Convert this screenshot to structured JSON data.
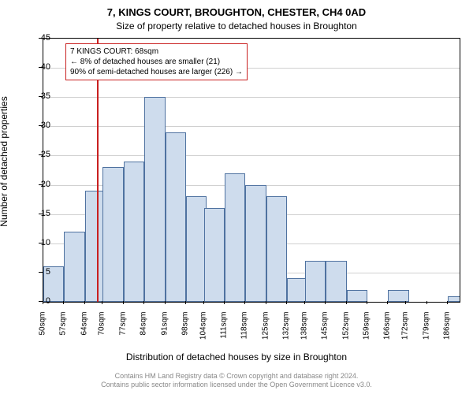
{
  "title_line1": "7, KINGS COURT, BROUGHTON, CHESTER, CH4 0AD",
  "title_line2": "Size of property relative to detached houses in Broughton",
  "ylabel": "Number of detached properties",
  "xlabel": "Distribution of detached houses by size in Broughton",
  "footer_line1": "Contains HM Land Registry data © Crown copyright and database right 2024.",
  "footer_line2": "Contains public sector information licensed under the Open Government Licence v3.0.",
  "chart": {
    "type": "histogram",
    "ylim": [
      0,
      45
    ],
    "ytick_step": 5,
    "x_start": 50,
    "x_end": 190,
    "bin_width": 7,
    "unit": "sqm",
    "marker_value": 68,
    "bar_fill": "#cedced",
    "bar_border": "#4f72a0",
    "grid_color": "#d0d0d0",
    "marker_color": "#c92020",
    "bins": [
      {
        "x": 50,
        "count": 6
      },
      {
        "x": 57,
        "count": 12
      },
      {
        "x": 64,
        "count": 19
      },
      {
        "x": 70,
        "count": 23
      },
      {
        "x": 77,
        "count": 24
      },
      {
        "x": 84,
        "count": 35
      },
      {
        "x": 91,
        "count": 29
      },
      {
        "x": 98,
        "count": 18
      },
      {
        "x": 104,
        "count": 16
      },
      {
        "x": 111,
        "count": 22
      },
      {
        "x": 118,
        "count": 20
      },
      {
        "x": 125,
        "count": 18
      },
      {
        "x": 132,
        "count": 4
      },
      {
        "x": 138,
        "count": 7
      },
      {
        "x": 145,
        "count": 7
      },
      {
        "x": 152,
        "count": 2
      },
      {
        "x": 159,
        "count": 0
      },
      {
        "x": 166,
        "count": 2
      },
      {
        "x": 172,
        "count": 0
      },
      {
        "x": 179,
        "count": 0
      },
      {
        "x": 186,
        "count": 1
      }
    ]
  },
  "annotation": {
    "line1": "7 KINGS COURT: 68sqm",
    "line2": "← 8% of detached houses are smaller (21)",
    "line3": "90% of semi-detached houses are larger (226) →"
  }
}
